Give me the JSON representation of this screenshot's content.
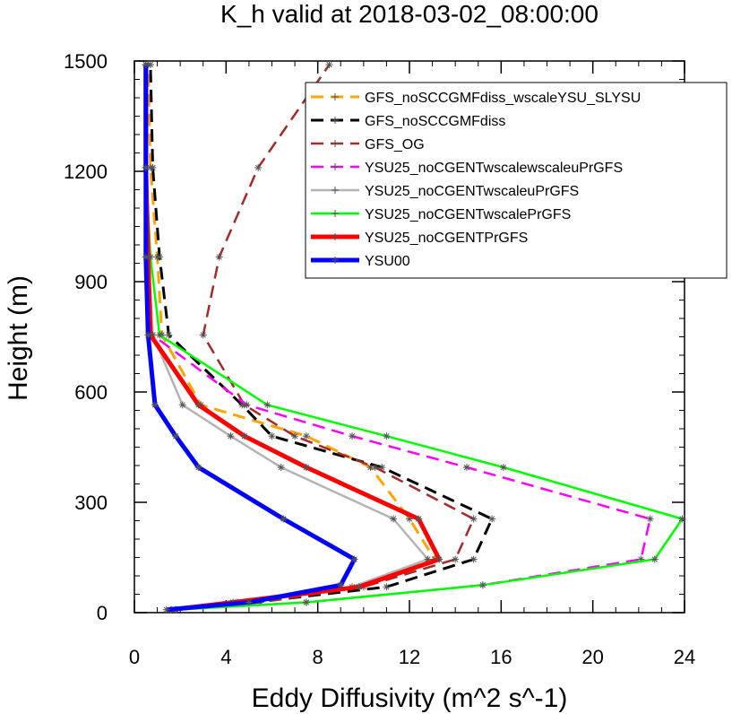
{
  "chart_data": {
    "type": "line",
    "title": "K_h valid at 2018-03-02_08:00:00",
    "xlabel": "Eddy Diffusivity (m^2 s^-1)",
    "ylabel": "Height (m)",
    "xlim": [
      0,
      24
    ],
    "ylim": [
      0,
      1500
    ],
    "x_ticks": [
      0,
      4,
      8,
      12,
      16,
      20,
      24
    ],
    "y_ticks": [
      0,
      300,
      600,
      900,
      1200,
      1500
    ],
    "x_minor_step": 1,
    "y_minor_step": 50,
    "grid": false,
    "legend_position": "top-right",
    "series": [
      {
        "name": "GFS_noSCCGMFdiss_wscaleYSU_SLYSU",
        "color": "#ffa500",
        "dash": "long-dash",
        "width": 3,
        "x": [
          1.8,
          4.5,
          9.8,
          13.1,
          12.0,
          10.3,
          7.5,
          2.9,
          1.2,
          1.0,
          0.7,
          0.6
        ],
        "y": [
          8,
          28,
          70,
          145,
          255,
          395,
          480,
          565,
          755,
          967,
          1210,
          1490
        ]
      },
      {
        "name": "GFS_noSCCGMFdiss",
        "color": "#000000",
        "dash": "long-dash",
        "width": 3,
        "x": [
          1.6,
          5.2,
          11.0,
          14.8,
          15.6,
          10.8,
          6.0,
          4.7,
          1.5,
          1.1,
          0.8,
          0.7
        ],
        "y": [
          8,
          28,
          70,
          145,
          255,
          395,
          480,
          565,
          755,
          967,
          1210,
          1490
        ]
      },
      {
        "name": "GFS_OG",
        "color": "#a52a2a",
        "dash": "long-dash",
        "width": 2.5,
        "x": [
          1.6,
          5.5,
          10.0,
          14.0,
          14.8,
          10.5,
          7.0,
          4.8,
          3.0,
          3.7,
          5.4,
          8.5
        ],
        "y": [
          8,
          28,
          70,
          145,
          255,
          395,
          480,
          565,
          755,
          967,
          1210,
          1490
        ]
      },
      {
        "name": "YSU25_noCGENTwscalewscaleuPrGFS",
        "color": "#ff00ff",
        "dash": "long-dash",
        "width": 2.5,
        "x": [
          1.8,
          7.5,
          15.2,
          22.1,
          22.5,
          14.5,
          9.5,
          4.9,
          0.8,
          0.6,
          0.5,
          0.5
        ],
        "y": [
          8,
          28,
          75,
          145,
          255,
          395,
          480,
          565,
          755,
          967,
          1210,
          1490
        ]
      },
      {
        "name": "YSU25_noCGENTwscaleuPrGFS",
        "color": "#b4b4b4",
        "dash": "solid",
        "width": 2.5,
        "x": [
          1.6,
          4.3,
          9.5,
          12.8,
          11.3,
          6.4,
          4.2,
          2.1,
          0.8,
          0.6,
          0.5,
          0.5
        ],
        "y": [
          8,
          28,
          70,
          145,
          255,
          395,
          480,
          565,
          755,
          967,
          1210,
          1490
        ]
      },
      {
        "name": "YSU25_noCGENTwscalePrGFS",
        "color": "#00ff00",
        "dash": "solid",
        "width": 2.5,
        "x": [
          1.8,
          7.5,
          15.2,
          22.7,
          23.9,
          16.1,
          11.0,
          5.8,
          1.1,
          0.7,
          0.5,
          0.5
        ],
        "y": [
          8,
          28,
          75,
          145,
          255,
          395,
          480,
          565,
          755,
          967,
          1210,
          1490
        ]
      },
      {
        "name": "YSU25_noCGENTPrGFS",
        "color": "#ff0000",
        "dash": "solid",
        "width": 5,
        "x": [
          1.6,
          4.3,
          9.8,
          13.3,
          12.4,
          7.5,
          4.8,
          2.8,
          0.7,
          0.6,
          0.5,
          0.5
        ],
        "y": [
          8,
          28,
          70,
          145,
          255,
          395,
          480,
          565,
          755,
          967,
          1210,
          1490
        ]
      },
      {
        "name": "YSU00",
        "color": "#0000ff",
        "dash": "solid",
        "width": 5,
        "x": [
          1.4,
          5.0,
          9.0,
          9.6,
          6.5,
          2.8,
          1.8,
          0.9,
          0.6,
          0.5,
          0.5,
          0.5
        ],
        "y": [
          8,
          28,
          75,
          145,
          255,
          395,
          480,
          565,
          755,
          967,
          1210,
          1490
        ]
      }
    ]
  }
}
